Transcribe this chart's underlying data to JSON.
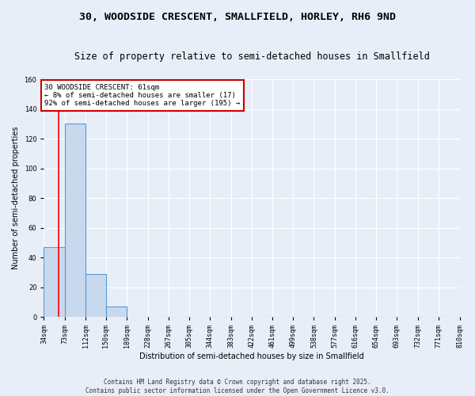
{
  "title": "30, WOODSIDE CRESCENT, SMALLFIELD, HORLEY, RH6 9ND",
  "subtitle": "Size of property relative to semi-detached houses in Smallfield",
  "xlabel": "Distribution of semi-detached houses by size in Smallfield",
  "ylabel": "Number of semi-detached properties",
  "bin_edges": [
    34,
    73,
    112,
    150,
    189,
    228,
    267,
    305,
    344,
    383,
    422,
    461,
    499,
    538,
    577,
    616,
    654,
    693,
    732,
    771,
    810
  ],
  "bar_heights": [
    47,
    130,
    29,
    7,
    0,
    0,
    0,
    0,
    0,
    0,
    0,
    0,
    0,
    0,
    0,
    0,
    0,
    0,
    0,
    0
  ],
  "bar_color": "#c8d9ee",
  "bar_edge_color": "#5b9bd5",
  "background_color": "#e8eef8",
  "grid_color": "#ffffff",
  "fig_background_color": "#e8eef8",
  "red_line_x": 61,
  "annotation_text": "30 WOODSIDE CRESCENT: 61sqm\n← 8% of semi-detached houses are smaller (17)\n92% of semi-detached houses are larger (195) →",
  "annotation_box_color": "#ffffff",
  "annotation_box_edge_color": "#cc0000",
  "ylim": [
    0,
    160
  ],
  "yticks": [
    0,
    20,
    40,
    60,
    80,
    100,
    120,
    140,
    160
  ],
  "footer_text": "Contains HM Land Registry data © Crown copyright and database right 2025.\nContains public sector information licensed under the Open Government Licence v3.0.",
  "title_fontsize": 9.5,
  "subtitle_fontsize": 8.5,
  "label_fontsize": 7,
  "tick_fontsize": 6,
  "annotation_fontsize": 6.5,
  "footer_fontsize": 5.5
}
